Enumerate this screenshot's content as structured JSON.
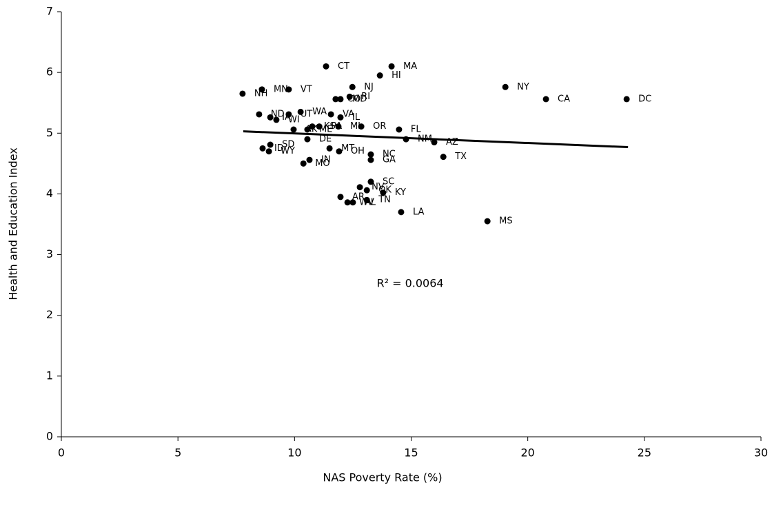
{
  "chart_data": {
    "type": "scatter",
    "x_label": "NAS Poverty Rate (%)",
    "y_label": "Health and Education Index",
    "annotation": "R² = 0.0064",
    "color": "#000000",
    "point_labels": [
      "NH",
      "MN",
      "VT",
      "CT",
      "MA",
      "HI",
      "NJ",
      "CO",
      "MD",
      "RI",
      "NY",
      "CA",
      "DC",
      "ND",
      "IA",
      "WI",
      "UT",
      "WA",
      "VA",
      "IL",
      "AK",
      "ME",
      "KS",
      "PA",
      "MI",
      "OR",
      "FL",
      "NM",
      "AZ",
      "TX",
      "DE",
      "ID",
      "SD",
      "WY",
      "MT",
      "OH",
      "NC",
      "GA",
      "IN",
      "MO",
      "SC",
      "NV",
      "OK",
      "KY",
      "AR",
      "WV",
      "AL",
      "TN",
      "LA",
      "MS"
    ],
    "x": [
      7.77,
      8.6,
      9.75,
      11.35,
      14.16,
      13.66,
      12.48,
      11.76,
      11.97,
      12.36,
      19.04,
      20.78,
      24.24,
      8.48,
      8.96,
      9.22,
      9.75,
      10.26,
      11.56,
      11.97,
      9.96,
      10.55,
      10.76,
      11.06,
      11.88,
      12.86,
      14.48,
      14.78,
      15.99,
      16.38,
      10.55,
      8.63,
      8.96,
      8.9,
      11.5,
      11.91,
      13.27,
      13.27,
      10.64,
      10.38,
      13.27,
      12.8,
      13.1,
      13.8,
      11.97,
      12.27,
      12.5,
      13.1,
      14.57,
      18.27
    ],
    "y": [
      5.65,
      5.72,
      5.72,
      6.1,
      6.1,
      5.95,
      5.76,
      5.56,
      5.56,
      5.6,
      5.76,
      5.56,
      5.56,
      5.31,
      5.26,
      5.22,
      5.31,
      5.35,
      5.31,
      5.26,
      5.06,
      5.06,
      5.11,
      5.11,
      5.11,
      5.11,
      5.06,
      4.9,
      4.85,
      4.61,
      4.9,
      4.75,
      4.81,
      4.7,
      4.75,
      4.7,
      4.65,
      4.56,
      4.56,
      4.5,
      4.2,
      4.11,
      4.06,
      4.02,
      3.95,
      3.86,
      3.86,
      3.9,
      3.7,
      3.55
    ],
    "trendline": {
      "x": [
        7.8,
        24.3
      ],
      "y": [
        5.03,
        4.77
      ]
    },
    "xlim": [
      0,
      30
    ],
    "xticks": [
      0,
      5,
      10,
      15,
      20,
      25,
      30
    ],
    "ylim": [
      0,
      7
    ],
    "yticks": [
      0,
      1,
      2,
      3,
      4,
      5,
      6,
      7
    ]
  }
}
